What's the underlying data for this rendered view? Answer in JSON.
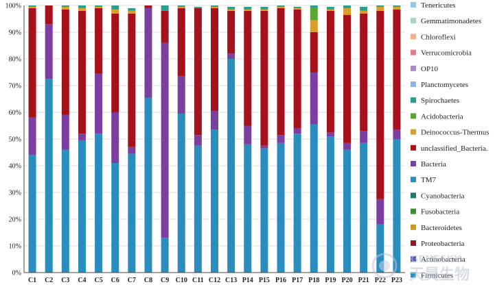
{
  "chart_data": {
    "type": "bar",
    "stacked": true,
    "normalized": true,
    "title": "",
    "xlabel": "",
    "ylabel": "",
    "ylim": [
      0,
      100
    ],
    "yticks": [
      "0%",
      "10%",
      "20%",
      "30%",
      "40%",
      "50%",
      "60%",
      "70%",
      "80%",
      "90%",
      "100%"
    ],
    "grid": true,
    "legend_position": "right",
    "categories": [
      "C1",
      "C2",
      "C3",
      "C4",
      "C5",
      "C6",
      "C7",
      "C8",
      "C9",
      "C10",
      "C11",
      "C12",
      "C13",
      "P14",
      "P15",
      "P16",
      "P17",
      "P18",
      "P19",
      "P20",
      "P21",
      "P22",
      "P23"
    ],
    "series": [
      {
        "name": "Firmicutes",
        "color": "#2b8cbe",
        "values": [
          44,
          72.5,
          46,
          49.5,
          52,
          41,
          44.5,
          65.5,
          13,
          59.5,
          47.5,
          53.5,
          80,
          48,
          46.5,
          48.5,
          52,
          55.5,
          51,
          46,
          48.5,
          18,
          50
        ]
      },
      {
        "name": "Actinobacteria",
        "color": "#5555b0",
        "values": [
          0,
          0,
          0,
          0,
          0,
          0,
          0,
          0,
          0,
          0,
          0,
          0,
          0,
          0,
          0,
          0,
          0,
          0,
          0,
          0,
          0,
          0,
          0
        ]
      },
      {
        "name": "Proteobacteria",
        "color": "#8e1b24",
        "values": [
          0,
          0,
          0,
          0,
          0,
          0,
          0,
          0,
          0,
          0,
          0,
          0,
          0,
          0,
          0,
          0,
          0,
          0,
          0,
          0,
          0,
          0,
          0
        ]
      },
      {
        "name": "Bacteroidetes",
        "color": "#c99a20",
        "values": [
          0,
          0,
          0,
          0,
          0,
          0,
          0,
          0,
          0,
          0,
          0,
          0,
          0,
          0,
          0,
          0,
          0,
          0,
          0,
          0,
          0,
          0,
          0
        ]
      },
      {
        "name": "Fusobacteria",
        "color": "#3b8f3b",
        "values": [
          0,
          0,
          0,
          0,
          0,
          0,
          0,
          0,
          0,
          0,
          0,
          0,
          0,
          0,
          0,
          0,
          0,
          0,
          0,
          0,
          0,
          0,
          0
        ]
      },
      {
        "name": "Cyanobacteria",
        "color": "#1e7a6a",
        "values": [
          0,
          0,
          0,
          0,
          0,
          0,
          0,
          0,
          0,
          0,
          0,
          0,
          0,
          0,
          0,
          0,
          0,
          0,
          0,
          0,
          0,
          0,
          0
        ]
      },
      {
        "name": "TM7",
        "color": "#2b8cbe",
        "values": [
          0,
          0,
          0,
          0,
          0,
          0,
          0,
          0,
          0,
          0,
          0,
          0,
          0,
          0,
          0,
          0,
          0,
          0,
          0,
          0,
          0,
          0,
          0
        ]
      },
      {
        "name": "Bacteria",
        "color": "#7b3fa0",
        "values": [
          14,
          20.5,
          13,
          2.5,
          22.5,
          19,
          2.5,
          33.5,
          73,
          14,
          4,
          7,
          2,
          7,
          1,
          3,
          2,
          19.5,
          1.5,
          2.5,
          4.5,
          9.5,
          3.5
        ]
      },
      {
        "name": "unclassified_Bacteria.",
        "color": "#a5121b",
        "values": [
          41,
          7,
          39.5,
          46,
          24.5,
          37,
          50,
          1,
          12,
          25.5,
          47.5,
          38.5,
          16,
          43,
          50.5,
          47.5,
          44.5,
          15,
          45.5,
          48,
          44,
          70.5,
          45
        ]
      },
      {
        "name": "Deinococcus-Thermus",
        "color": "#d8a02a",
        "values": [
          0.5,
          0,
          1,
          1,
          0.5,
          1.5,
          1,
          0,
          0,
          0.5,
          0,
          0.5,
          0.5,
          0.5,
          0.5,
          0.5,
          0.5,
          4.5,
          0.5,
          2.5,
          1,
          1.5,
          1
        ]
      },
      {
        "name": "Acidobacteria",
        "color": "#5aa534",
        "values": [
          0,
          0,
          0,
          0,
          0,
          0,
          0,
          0,
          0,
          0,
          0,
          0,
          0,
          0,
          0,
          0,
          0,
          4.5,
          0,
          0,
          0,
          0,
          0
        ]
      },
      {
        "name": "Spirochaetes",
        "color": "#2a9d8f",
        "values": [
          0.5,
          0,
          0.5,
          1,
          0.5,
          1.5,
          1,
          0,
          2,
          0.5,
          0.5,
          0.5,
          1,
          1,
          1,
          0.5,
          0.5,
          1,
          1,
          1,
          1.5,
          0.5,
          0.5
        ]
      },
      {
        "name": "Planctomycetes",
        "color": "#8fb3e0",
        "values": [
          0,
          0,
          0,
          0,
          0,
          0,
          0,
          0,
          0,
          0,
          0,
          0,
          0,
          0,
          0,
          0,
          0,
          0,
          0,
          0,
          0,
          0,
          0
        ]
      },
      {
        "name": "OP10",
        "color": "#a98bc9",
        "values": [
          0,
          0,
          0,
          0,
          0,
          0,
          0,
          0,
          0,
          0,
          0,
          0,
          0,
          0,
          0,
          0,
          0,
          0,
          0,
          0,
          0,
          0,
          0
        ]
      },
      {
        "name": "Verrucomicrobia",
        "color": "#e07f86",
        "values": [
          0,
          0,
          0,
          0,
          0,
          0,
          0,
          0,
          0,
          0,
          0,
          0,
          0,
          0,
          0,
          0,
          0,
          0,
          0,
          0,
          0,
          0,
          0
        ]
      },
      {
        "name": "Chloroflexi",
        "color": "#f4b08a",
        "values": [
          0,
          0,
          0,
          0,
          0,
          0,
          0,
          0,
          0,
          0,
          0,
          0,
          0,
          0,
          0,
          0,
          0,
          0,
          0,
          0,
          0,
          0,
          0
        ]
      },
      {
        "name": "Gemmatimonadetes",
        "color": "#a3d4c6",
        "values": [
          0,
          0,
          0,
          0,
          0,
          0,
          0,
          0,
          0,
          0,
          0,
          0,
          0,
          0,
          0,
          0,
          0,
          0,
          0,
          0,
          0,
          0,
          0
        ]
      },
      {
        "name": "Tenericutes",
        "color": "#8ecfdf",
        "values": [
          0,
          0,
          0,
          0,
          0,
          0,
          0,
          0,
          0,
          0,
          0,
          0,
          0,
          0,
          0,
          0,
          0,
          0,
          0,
          0,
          0,
          0,
          0
        ]
      }
    ]
  },
  "watermark": {
    "brand_en": "GENESKY",
    "brand_cn": "天昊生物"
  }
}
